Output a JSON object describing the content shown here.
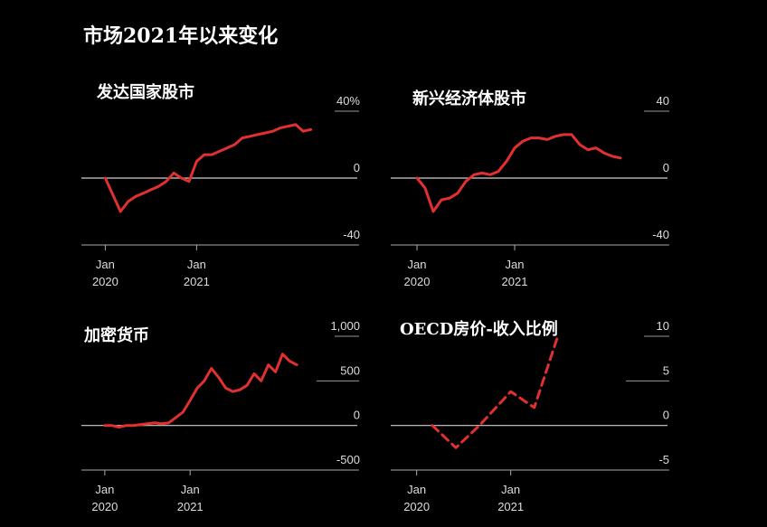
{
  "page_title": "市场2021年以来变化",
  "colors": {
    "background": "#000000",
    "series": "#e03030",
    "gridline": "#bbbbbb",
    "text": "#ffffff"
  },
  "chart_data": [
    {
      "type": "line",
      "title": "发达国家股市",
      "ylim": [
        -40,
        40
      ],
      "yticks": [
        {
          "value": 40,
          "label": "40%"
        },
        {
          "value": 0,
          "label": "0"
        },
        {
          "value": -40,
          "label": "-40"
        }
      ],
      "xticks": [
        {
          "x": 0,
          "label": [
            "Jan",
            "2020"
          ]
        },
        {
          "x": 12,
          "label": [
            "Jan",
            "2021"
          ]
        }
      ],
      "xlim": [
        -1,
        28
      ],
      "dashed": false,
      "x": [
        0,
        1,
        2,
        3,
        4,
        5,
        6,
        7,
        8,
        9,
        10,
        11,
        12,
        13,
        14,
        15,
        16,
        17,
        18,
        19,
        20,
        21,
        22,
        23,
        24,
        25,
        26,
        27
      ],
      "y": [
        0,
        -10,
        -20,
        -14,
        -11,
        -9,
        -7,
        -5,
        -2,
        3,
        0,
        -2,
        10,
        14,
        14,
        16,
        18,
        20,
        24,
        25,
        26,
        27,
        28,
        30,
        31,
        32,
        28,
        29
      ]
    },
    {
      "type": "line",
      "title": "新兴经济体股市",
      "ylim": [
        -40,
        40
      ],
      "yticks": [
        {
          "value": 40,
          "label": "40"
        },
        {
          "value": 0,
          "label": "0"
        },
        {
          "value": -40,
          "label": "-40"
        }
      ],
      "xticks": [
        {
          "x": 0,
          "label": [
            "Jan",
            "2020"
          ]
        },
        {
          "x": 12,
          "label": [
            "Jan",
            "2021"
          ]
        }
      ],
      "xlim": [
        -1,
        26
      ],
      "dashed": false,
      "x": [
        0,
        1,
        2,
        3,
        4,
        5,
        6,
        7,
        8,
        9,
        10,
        11,
        12,
        13,
        14,
        15,
        16,
        17,
        18,
        19,
        20,
        21,
        22,
        23,
        24,
        25
      ],
      "y": [
        0,
        -6,
        -20,
        -13,
        -12,
        -9,
        -2,
        2,
        3,
        2,
        4,
        10,
        18,
        22,
        24,
        24,
        23,
        25,
        26,
        26,
        20,
        17,
        18,
        15,
        13,
        12
      ]
    },
    {
      "type": "line",
      "title": "加密货币",
      "ylim": [
        -500,
        1000
      ],
      "yticks": [
        {
          "value": 1000,
          "label": "1,000"
        },
        {
          "value": 500,
          "label": "500"
        },
        {
          "value": 0,
          "label": "0"
        },
        {
          "value": -500,
          "label": "-500"
        }
      ],
      "xticks": [
        {
          "x": 0,
          "label": [
            "Jan",
            "2020"
          ]
        },
        {
          "x": 12,
          "label": [
            "Jan",
            "2021"
          ]
        }
      ],
      "xlim": [
        -1,
        28
      ],
      "dashed": false,
      "x": [
        0,
        1,
        2,
        3,
        4,
        5,
        6,
        7,
        8,
        9,
        10,
        11,
        12,
        13,
        14,
        15,
        16,
        17,
        18,
        19,
        20,
        21,
        22,
        23,
        24,
        25,
        26,
        27
      ],
      "y": [
        0,
        0,
        -20,
        0,
        0,
        10,
        20,
        30,
        20,
        30,
        90,
        150,
        280,
        420,
        500,
        640,
        540,
        420,
        380,
        400,
        450,
        580,
        500,
        680,
        600,
        800,
        720,
        680
      ]
    },
    {
      "type": "line",
      "title": "OECD房价-收入比例",
      "ylim": [
        -5,
        10
      ],
      "yticks": [
        {
          "value": 10,
          "label": "10"
        },
        {
          "value": 5,
          "label": "5"
        },
        {
          "value": 0,
          "label": "0"
        },
        {
          "value": -5,
          "label": "-5"
        }
      ],
      "xticks": [
        {
          "x": 0,
          "label": [
            "Jan",
            "2020"
          ]
        },
        {
          "x": 12,
          "label": [
            "Jan",
            "2021"
          ]
        }
      ],
      "xlim": [
        -1,
        26
      ],
      "dashed": true,
      "x": [
        2,
        5,
        8,
        12,
        15,
        18
      ],
      "y": [
        0,
        -2.5,
        0,
        3.8,
        2.0,
        10
      ]
    }
  ]
}
